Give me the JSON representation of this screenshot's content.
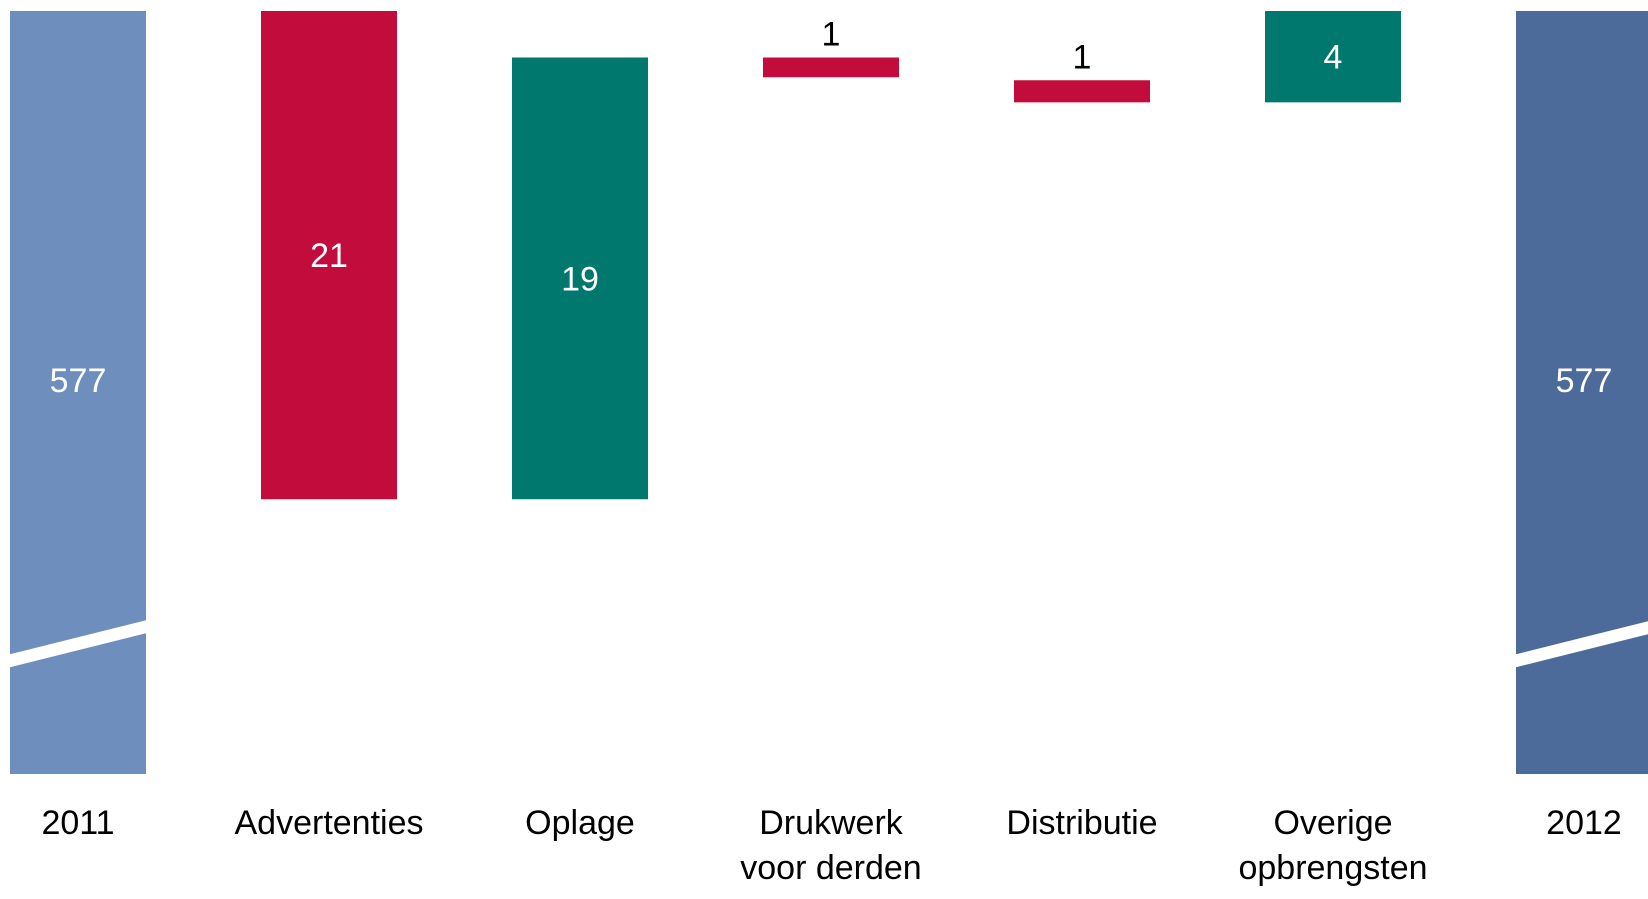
{
  "chart_data": {
    "type": "bar",
    "subtype": "waterfall",
    "title": "",
    "xlabel": "",
    "ylabel": "",
    "axis_break_on_total_bars": true,
    "y_reference": 577,
    "categories": [
      "2011",
      "Advertenties",
      "Oplage",
      "Drukwerk voor derden",
      "Distributie",
      "Overige opbrengsten",
      "2012"
    ],
    "category_label_lines": [
      [
        "2011"
      ],
      [
        "Advertenties"
      ],
      [
        "Oplage"
      ],
      [
        "Drukwerk",
        "voor derden"
      ],
      [
        "Distributie"
      ],
      [
        "Overige",
        "opbrengsten"
      ],
      [
        "2012"
      ]
    ],
    "value_labels": [
      "577",
      "21",
      "19",
      "1",
      "1",
      "4",
      "577"
    ],
    "values": [
      577,
      -21,
      19,
      -1,
      -1,
      4,
      577
    ],
    "bar_kinds": [
      "total",
      "decrease",
      "increase",
      "decrease",
      "decrease",
      "increase",
      "total"
    ],
    "colors": {
      "total_2011": "#6e8fbd",
      "total_2012": "#4c6b9b",
      "decrease": "#c20c3c",
      "increase": "#00786e",
      "break_line": "#ffffff"
    }
  }
}
